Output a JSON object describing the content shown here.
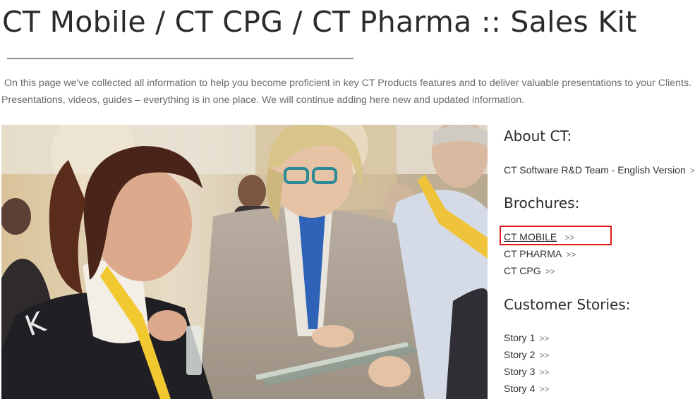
{
  "page": {
    "title": "CT Mobile / CT CPG / CT Pharma :: Sales Kit",
    "intro_line1": "On this page we've collected all information to help you become proficient in key CT Products features and to deliver valuable presentations to your Clients.",
    "intro_line2": "Presentations, videos, guides – everything is in one place. We will continue adding here new and updated information."
  },
  "sidebar": {
    "about": {
      "heading": "About CT:",
      "links": [
        {
          "label": "CT Software R&D Team - English Version",
          "arrow": ">>"
        }
      ]
    },
    "brochures": {
      "heading": "Brochures:",
      "links": [
        {
          "label": "CT MOBILE",
          "arrow": ">>"
        },
        {
          "label": "CT PHARMA",
          "arrow": ">>"
        },
        {
          "label": "CT CPG",
          "arrow": ">>"
        }
      ]
    },
    "stories": {
      "heading": "Customer Stories:",
      "links": [
        {
          "label": "Story 1",
          "arrow": ">>"
        },
        {
          "label": "Story 2",
          "arrow": ">>"
        },
        {
          "label": "Story 3",
          "arrow": ">>"
        },
        {
          "label": "Story 4",
          "arrow": ">>"
        }
      ]
    }
  },
  "colors": {
    "highlight": "#e0181c",
    "text": "#2b2b2b",
    "muted": "#6a6a6a"
  }
}
